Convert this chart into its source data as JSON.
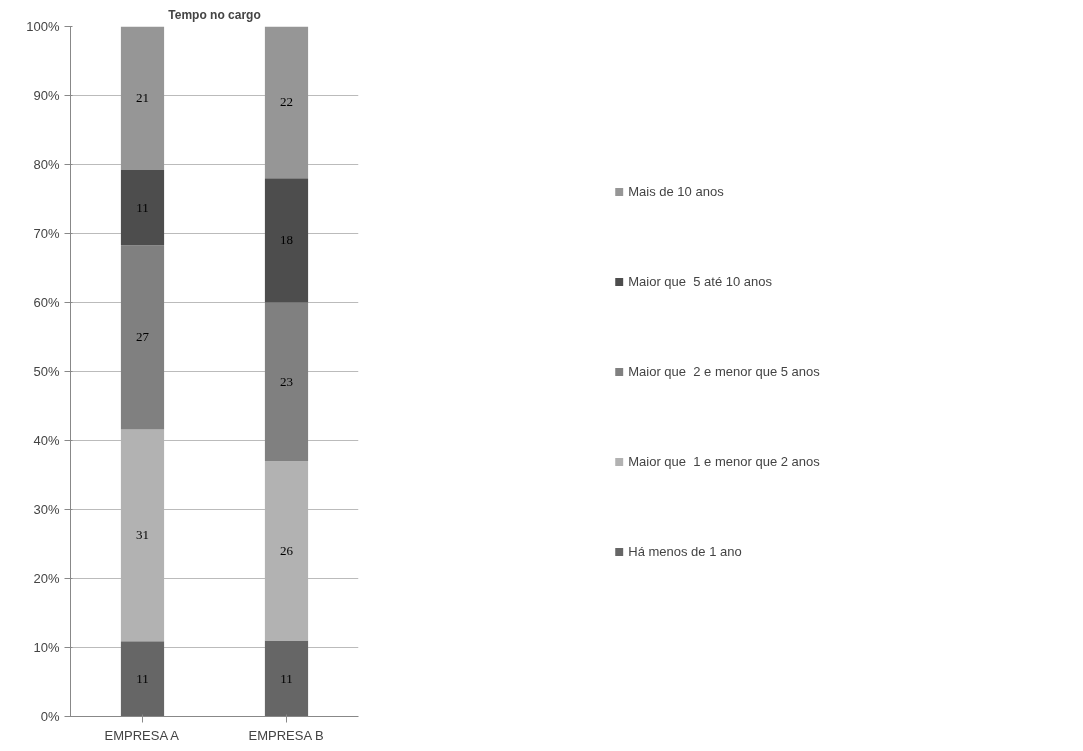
{
  "chart_data": {
    "type": "bar",
    "title": "Tempo no cargo",
    "stacked": true,
    "categories": [
      "EMPRESA A",
      "EMPRESA B"
    ],
    "series": [
      {
        "name": "Há menos de 1 ano",
        "color": "#666666",
        "values": [
          10.9,
          11
        ],
        "value_labels": [
          "11",
          "11"
        ]
      },
      {
        "name": "Maior que  1 e menor que 2 anos",
        "color": "#b2b2b2",
        "values": [
          30.7,
          26
        ],
        "value_labels": [
          "31",
          "26"
        ]
      },
      {
        "name": "Maior que  2 e menor que 5 anos",
        "color": "#808080",
        "values": [
          26.7,
          23
        ],
        "value_labels": [
          "27",
          "23"
        ]
      },
      {
        "name": "Maior que  5 até 10 anos",
        "color": "#4d4d4d",
        "values": [
          10.9,
          18
        ],
        "value_labels": [
          "11",
          "18"
        ]
      },
      {
        "name": "Mais de 10 anos",
        "color": "#969696",
        "values": [
          20.8,
          22
        ],
        "value_labels": [
          "21",
          "22"
        ]
      }
    ],
    "ylim": [
      0,
      100
    ],
    "yticks": [
      {
        "value": 0,
        "label": "0%"
      },
      {
        "value": 10,
        "label": "10%"
      },
      {
        "value": 20,
        "label": "20%"
      },
      {
        "value": 30,
        "label": "30%"
      },
      {
        "value": 40,
        "label": "40%"
      },
      {
        "value": 50,
        "label": "50%"
      },
      {
        "value": 60,
        "label": "60%"
      },
      {
        "value": 70,
        "label": "70%"
      },
      {
        "value": 80,
        "label": "80%"
      },
      {
        "value": 90,
        "label": "90%"
      },
      {
        "value": 100,
        "label": "100%"
      }
    ],
    "grid": "y",
    "legend": "right"
  }
}
